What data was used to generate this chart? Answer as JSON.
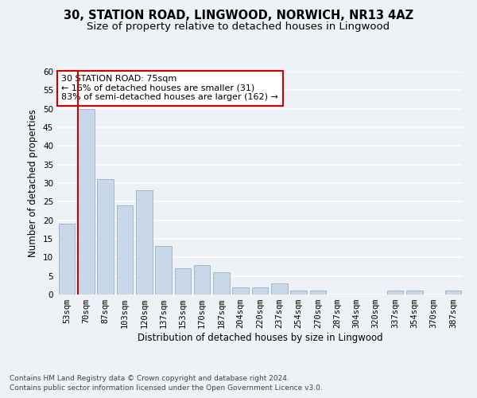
{
  "title1": "30, STATION ROAD, LINGWOOD, NORWICH, NR13 4AZ",
  "title2": "Size of property relative to detached houses in Lingwood",
  "xlabel": "Distribution of detached houses by size in Lingwood",
  "ylabel": "Number of detached properties",
  "categories": [
    "53sqm",
    "70sqm",
    "87sqm",
    "103sqm",
    "120sqm",
    "137sqm",
    "153sqm",
    "170sqm",
    "187sqm",
    "204sqm",
    "220sqm",
    "237sqm",
    "254sqm",
    "270sqm",
    "287sqm",
    "304sqm",
    "320sqm",
    "337sqm",
    "354sqm",
    "370sqm",
    "387sqm"
  ],
  "values": [
    19,
    50,
    31,
    24,
    28,
    13,
    7,
    8,
    6,
    2,
    2,
    3,
    1,
    1,
    0,
    0,
    0,
    1,
    1,
    0,
    1
  ],
  "bar_color": "#c8d8e8",
  "bar_edge_color": "#a0b8d0",
  "annotation_text": "30 STATION ROAD: 75sqm\n← 16% of detached houses are smaller (31)\n83% of semi-detached houses are larger (162) →",
  "annotation_box_color": "#ffffff",
  "annotation_box_edge": "#cc0000",
  "vline_color": "#cc0000",
  "vline_x": 0.575,
  "ylim": [
    0,
    60
  ],
  "yticks": [
    0,
    5,
    10,
    15,
    20,
    25,
    30,
    35,
    40,
    45,
    50,
    55,
    60
  ],
  "footer1": "Contains HM Land Registry data © Crown copyright and database right 2024.",
  "footer2": "Contains public sector information licensed under the Open Government Licence v3.0.",
  "bg_color": "#eef2f6",
  "plot_bg_color": "#eef2f6",
  "grid_color": "#ffffff",
  "title_fontsize": 10.5,
  "subtitle_fontsize": 9.5,
  "axis_label_fontsize": 8.5,
  "tick_fontsize": 7.5,
  "footer_fontsize": 6.5
}
